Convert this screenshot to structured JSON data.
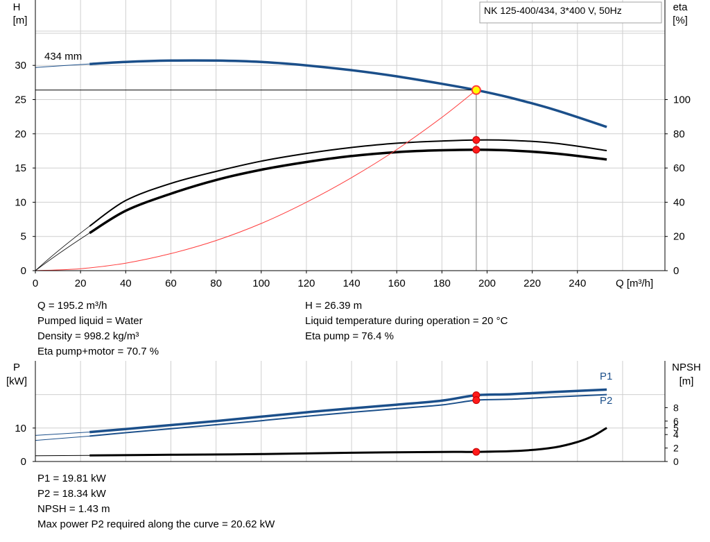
{
  "chart_data": [
    {
      "type": "line",
      "title": "NK 125-400/434, 3*400 V, 50Hz",
      "xlabel": "Q [m³/h]",
      "ylabel_left": [
        "H",
        "[m]"
      ],
      "ylabel_right": [
        "eta",
        "[%]"
      ],
      "xlim": [
        0,
        260
      ],
      "ylim_left": [
        0,
        35
      ],
      "ylim_right": [
        0,
        140
      ],
      "x_ticks": [
        0,
        20,
        40,
        60,
        80,
        100,
        120,
        140,
        160,
        180,
        200,
        220,
        240
      ],
      "y_ticks_left": [
        0,
        5,
        10,
        15,
        20,
        25,
        30
      ],
      "y_ticks_right": [
        0,
        20,
        40,
        60,
        80,
        100
      ],
      "grid": true,
      "impeller_label": "434 mm",
      "duty_point": {
        "Q": 195.2,
        "H": 26.39,
        "eta_pump": 76.4,
        "eta_total": 70.7
      },
      "series": [
        {
          "role": "head",
          "unit": "m",
          "color": "#1b4f8a",
          "x": [
            0,
            24,
            40,
            60,
            80,
            100,
            120,
            140,
            160,
            180,
            195.2,
            210,
            230,
            253
          ],
          "y": [
            29.7,
            30.2,
            30.5,
            30.7,
            30.7,
            30.5,
            30.0,
            29.3,
            28.4,
            27.3,
            26.39,
            25.3,
            23.5,
            21.0
          ]
        },
        {
          "role": "eta_pump",
          "unit": "%",
          "color": "#000000",
          "x": [
            24,
            40,
            60,
            80,
            100,
            120,
            140,
            160,
            180,
            195.2,
            210,
            230,
            253
          ],
          "y": [
            26,
            41,
            51,
            58,
            64,
            68.5,
            72,
            74.5,
            75.8,
            76.4,
            76.2,
            74.5,
            70.2
          ]
        },
        {
          "role": "eta_total",
          "unit": "%",
          "color": "#000000",
          "x": [
            24,
            40,
            60,
            80,
            100,
            120,
            140,
            160,
            180,
            195.2,
            210,
            230,
            253
          ],
          "y": [
            22,
            35,
            45,
            53,
            59,
            63.5,
            67,
            69.3,
            70.4,
            70.7,
            70.3,
            68.5,
            65.0
          ]
        },
        {
          "role": "system_curve",
          "unit": "m",
          "color": "#ff3b3b",
          "x": [
            0,
            20,
            40,
            60,
            80,
            100,
            120,
            140,
            160,
            180,
            195.2
          ],
          "y": [
            0,
            0.28,
            1.1,
            2.5,
            4.4,
            6.9,
            10.0,
            13.6,
            17.7,
            22.4,
            26.39
          ]
        }
      ]
    },
    {
      "type": "line",
      "xlim": [
        0,
        260
      ],
      "ylabel_left": [
        "P",
        "[kW]"
      ],
      "ylabel_right": [
        "NPSH",
        "[m]"
      ],
      "ylim_left": [
        0,
        25
      ],
      "ylim_right": [
        0,
        25
      ],
      "y_ticks_left": [
        0,
        10
      ],
      "y_ticks_right": [
        0,
        2,
        4,
        5,
        6,
        8
      ],
      "grid": true,
      "series": [
        {
          "name": "P1",
          "unit": "kW",
          "color": "#1b4f8a",
          "x": [
            0,
            24,
            40,
            60,
            80,
            100,
            120,
            140,
            160,
            180,
            195.2,
            210,
            230,
            253
          ],
          "y": [
            7.8,
            8.8,
            9.7,
            10.9,
            12.1,
            13.4,
            14.7,
            15.9,
            17.0,
            18.2,
            19.81,
            20.1,
            20.8,
            21.5
          ]
        },
        {
          "name": "P2",
          "unit": "kW",
          "color": "#1b4f8a",
          "x": [
            0,
            24,
            40,
            60,
            80,
            100,
            120,
            140,
            160,
            180,
            195.2,
            210,
            230,
            253
          ],
          "y": [
            6.3,
            7.6,
            8.6,
            9.8,
            11.0,
            12.2,
            13.5,
            14.7,
            15.8,
            16.9,
            18.34,
            18.6,
            19.3,
            20.0
          ]
        },
        {
          "role": "npsh",
          "unit": "m",
          "color": "#000000",
          "x": [
            0,
            24,
            60,
            100,
            140,
            180,
            195.2,
            215,
            230,
            240,
            247,
            253
          ],
          "y": [
            0.85,
            0.9,
            1.0,
            1.1,
            1.3,
            1.42,
            1.43,
            1.6,
            2.1,
            2.9,
            3.8,
            5.0
          ]
        }
      ],
      "duty_points": {
        "P1": 19.81,
        "P2": 18.34,
        "NPSH": 1.43
      }
    }
  ],
  "info_top": {
    "left": [
      "Q = 195.2 m³/h",
      "Pumped liquid = Water",
      "Density = 998.2 kg/m³",
      "Eta pump+motor = 70.7 %"
    ],
    "right": [
      "H = 26.39 m",
      "Liquid temperature during operation = 20 °C",
      "Eta pump = 76.4 %"
    ]
  },
  "info_bottom": [
    "P1 = 19.81 kW",
    "P2 = 18.34 kW",
    "NPSH = 1.43 m",
    "Max power P2 required along the curve = 20.62 kW"
  ]
}
